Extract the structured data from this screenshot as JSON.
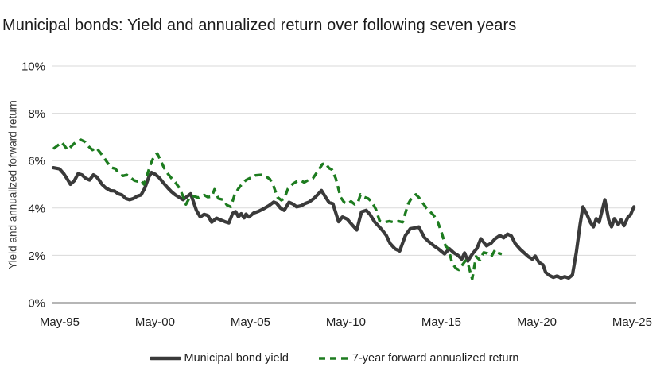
{
  "title": "Municipal bonds: Yield and annualized return over following seven years",
  "chart_data": {
    "type": "line",
    "title": "Municipal bonds: Yield and annualized return over following seven years",
    "xlabel": "",
    "ylabel": "Yield and annualized forward return",
    "ylim": [
      0,
      10
    ],
    "grid": "horizontal-only",
    "legend_position": "bottom-center",
    "y_ticks": [
      {
        "label": "0%",
        "value": 0
      },
      {
        "label": "2%",
        "value": 2
      },
      {
        "label": "4%",
        "value": 4
      },
      {
        "label": "6%",
        "value": 6
      },
      {
        "label": "8%",
        "value": 8
      },
      {
        "label": "10%",
        "value": 10
      }
    ],
    "x_ticks": [
      {
        "label": "May-95",
        "year": 1995.33
      },
      {
        "label": "May-00",
        "year": 2000.33
      },
      {
        "label": "May-05",
        "year": 2005.33
      },
      {
        "label": "May-10",
        "year": 2010.33
      },
      {
        "label": "May-15",
        "year": 2015.33
      },
      {
        "label": "May-20",
        "year": 2020.33
      },
      {
        "label": "May-25",
        "year": 2025.33
      }
    ],
    "series": [
      {
        "name": "Municipal bond yield",
        "style": "solid",
        "color": "#3a3a3a",
        "points": [
          [
            1995.0,
            5.7
          ],
          [
            1995.33,
            5.65
          ],
          [
            1995.55,
            5.45
          ],
          [
            1995.75,
            5.2
          ],
          [
            1995.9,
            5.0
          ],
          [
            1996.1,
            5.15
          ],
          [
            1996.3,
            5.45
          ],
          [
            1996.5,
            5.4
          ],
          [
            1996.7,
            5.25
          ],
          [
            1996.9,
            5.18
          ],
          [
            1997.1,
            5.4
          ],
          [
            1997.25,
            5.33
          ],
          [
            1997.4,
            5.18
          ],
          [
            1997.55,
            5.0
          ],
          [
            1997.75,
            4.85
          ],
          [
            1998.0,
            4.73
          ],
          [
            1998.2,
            4.72
          ],
          [
            1998.4,
            4.6
          ],
          [
            1998.6,
            4.55
          ],
          [
            1998.8,
            4.4
          ],
          [
            1999.0,
            4.35
          ],
          [
            1999.2,
            4.4
          ],
          [
            1999.4,
            4.5
          ],
          [
            1999.6,
            4.55
          ],
          [
            1999.8,
            4.85
          ],
          [
            2000.0,
            5.3
          ],
          [
            2000.15,
            5.5
          ],
          [
            2000.35,
            5.42
          ],
          [
            2000.55,
            5.28
          ],
          [
            2000.75,
            5.08
          ],
          [
            2001.0,
            4.85
          ],
          [
            2001.2,
            4.68
          ],
          [
            2001.4,
            4.55
          ],
          [
            2001.6,
            4.45
          ],
          [
            2001.8,
            4.35
          ],
          [
            2002.0,
            4.48
          ],
          [
            2002.2,
            4.6
          ],
          [
            2002.5,
            3.9
          ],
          [
            2002.7,
            3.62
          ],
          [
            2002.9,
            3.73
          ],
          [
            2003.1,
            3.68
          ],
          [
            2003.3,
            3.4
          ],
          [
            2003.55,
            3.57
          ],
          [
            2003.75,
            3.5
          ],
          [
            2004.0,
            3.42
          ],
          [
            2004.2,
            3.37
          ],
          [
            2004.4,
            3.78
          ],
          [
            2004.55,
            3.85
          ],
          [
            2004.7,
            3.63
          ],
          [
            2004.85,
            3.76
          ],
          [
            2005.0,
            3.58
          ],
          [
            2005.1,
            3.74
          ],
          [
            2005.25,
            3.62
          ],
          [
            2005.5,
            3.79
          ],
          [
            2005.75,
            3.86
          ],
          [
            2006.0,
            3.96
          ],
          [
            2006.3,
            4.1
          ],
          [
            2006.55,
            4.25
          ],
          [
            2006.7,
            4.2
          ],
          [
            2006.9,
            4.0
          ],
          [
            2007.1,
            3.9
          ],
          [
            2007.35,
            4.24
          ],
          [
            2007.55,
            4.17
          ],
          [
            2007.75,
            4.05
          ],
          [
            2008.0,
            4.1
          ],
          [
            2008.2,
            4.19
          ],
          [
            2008.4,
            4.25
          ],
          [
            2008.65,
            4.4
          ],
          [
            2008.9,
            4.6
          ],
          [
            2009.05,
            4.74
          ],
          [
            2009.25,
            4.48
          ],
          [
            2009.45,
            4.23
          ],
          [
            2009.65,
            4.18
          ],
          [
            2009.95,
            3.42
          ],
          [
            2010.15,
            3.62
          ],
          [
            2010.4,
            3.53
          ],
          [
            2010.65,
            3.3
          ],
          [
            2010.9,
            3.07
          ],
          [
            2011.15,
            3.84
          ],
          [
            2011.4,
            3.9
          ],
          [
            2011.6,
            3.72
          ],
          [
            2011.85,
            3.4
          ],
          [
            2012.05,
            3.23
          ],
          [
            2012.25,
            3.05
          ],
          [
            2012.45,
            2.84
          ],
          [
            2012.65,
            2.5
          ],
          [
            2012.9,
            2.28
          ],
          [
            2013.15,
            2.18
          ],
          [
            2013.45,
            2.84
          ],
          [
            2013.7,
            3.12
          ],
          [
            2013.9,
            3.15
          ],
          [
            2014.15,
            3.2
          ],
          [
            2014.45,
            2.75
          ],
          [
            2014.7,
            2.56
          ],
          [
            2014.95,
            2.4
          ],
          [
            2015.2,
            2.26
          ],
          [
            2015.5,
            2.06
          ],
          [
            2015.75,
            2.28
          ],
          [
            2016.0,
            2.1
          ],
          [
            2016.2,
            2.0
          ],
          [
            2016.4,
            1.84
          ],
          [
            2016.55,
            2.1
          ],
          [
            2016.72,
            1.76
          ],
          [
            2016.95,
            2.05
          ],
          [
            2017.2,
            2.3
          ],
          [
            2017.4,
            2.7
          ],
          [
            2017.7,
            2.4
          ],
          [
            2017.95,
            2.52
          ],
          [
            2018.15,
            2.7
          ],
          [
            2018.4,
            2.84
          ],
          [
            2018.6,
            2.74
          ],
          [
            2018.8,
            2.9
          ],
          [
            2019.0,
            2.82
          ],
          [
            2019.2,
            2.5
          ],
          [
            2019.45,
            2.27
          ],
          [
            2019.65,
            2.12
          ],
          [
            2019.9,
            1.94
          ],
          [
            2020.1,
            1.84
          ],
          [
            2020.25,
            1.97
          ],
          [
            2020.45,
            1.7
          ],
          [
            2020.66,
            1.6
          ],
          [
            2020.8,
            1.28
          ],
          [
            2021.0,
            1.15
          ],
          [
            2021.2,
            1.07
          ],
          [
            2021.4,
            1.13
          ],
          [
            2021.6,
            1.04
          ],
          [
            2021.8,
            1.1
          ],
          [
            2022.0,
            1.04
          ],
          [
            2022.2,
            1.17
          ],
          [
            2022.4,
            2.1
          ],
          [
            2022.6,
            3.3
          ],
          [
            2022.75,
            4.05
          ],
          [
            2022.95,
            3.75
          ],
          [
            2023.15,
            3.38
          ],
          [
            2023.3,
            3.2
          ],
          [
            2023.45,
            3.55
          ],
          [
            2023.6,
            3.4
          ],
          [
            2023.9,
            4.35
          ],
          [
            2024.1,
            3.5
          ],
          [
            2024.25,
            3.2
          ],
          [
            2024.4,
            3.55
          ],
          [
            2024.6,
            3.3
          ],
          [
            2024.75,
            3.5
          ],
          [
            2024.9,
            3.25
          ],
          [
            2025.1,
            3.6
          ],
          [
            2025.25,
            3.72
          ],
          [
            2025.42,
            4.05
          ]
        ]
      },
      {
        "name": "7-year forward annualized return",
        "style": "dashed",
        "color": "#1d7c1f",
        "points": [
          [
            1995.0,
            6.5
          ],
          [
            1995.2,
            6.62
          ],
          [
            1995.45,
            6.78
          ],
          [
            1995.75,
            6.45
          ],
          [
            1996.0,
            6.65
          ],
          [
            1996.2,
            6.8
          ],
          [
            1996.45,
            6.88
          ],
          [
            1996.65,
            6.8
          ],
          [
            1996.85,
            6.6
          ],
          [
            1997.05,
            6.45
          ],
          [
            1997.25,
            6.55
          ],
          [
            1997.45,
            6.35
          ],
          [
            1997.65,
            6.13
          ],
          [
            1997.85,
            5.9
          ],
          [
            1998.05,
            5.7
          ],
          [
            1998.25,
            5.66
          ],
          [
            1998.45,
            5.45
          ],
          [
            1998.65,
            5.36
          ],
          [
            1998.85,
            5.4
          ],
          [
            1999.05,
            5.28
          ],
          [
            1999.25,
            5.16
          ],
          [
            1999.45,
            5.12
          ],
          [
            1999.6,
            5.16
          ],
          [
            1999.75,
            5.0
          ],
          [
            1999.9,
            5.35
          ],
          [
            2000.1,
            5.85
          ],
          [
            2000.3,
            6.22
          ],
          [
            2000.45,
            6.3
          ],
          [
            2000.6,
            6.05
          ],
          [
            2000.8,
            5.7
          ],
          [
            2001.0,
            5.45
          ],
          [
            2001.2,
            5.25
          ],
          [
            2001.4,
            5.08
          ],
          [
            2001.6,
            4.85
          ],
          [
            2001.8,
            4.5
          ],
          [
            2001.95,
            4.15
          ],
          [
            2002.15,
            4.45
          ],
          [
            2002.35,
            4.5
          ],
          [
            2002.6,
            4.44
          ],
          [
            2002.9,
            4.55
          ],
          [
            2003.1,
            4.46
          ],
          [
            2003.3,
            4.48
          ],
          [
            2003.45,
            4.79
          ],
          [
            2003.65,
            4.4
          ],
          [
            2003.9,
            4.35
          ],
          [
            2004.1,
            4.12
          ],
          [
            2004.3,
            4.05
          ],
          [
            2004.5,
            4.55
          ],
          [
            2004.7,
            4.82
          ],
          [
            2004.9,
            5.02
          ],
          [
            2005.1,
            5.18
          ],
          [
            2005.35,
            5.28
          ],
          [
            2005.6,
            5.38
          ],
          [
            2005.9,
            5.4
          ],
          [
            2006.15,
            5.33
          ],
          [
            2006.35,
            5.22
          ],
          [
            2006.55,
            4.9
          ],
          [
            2006.75,
            4.45
          ],
          [
            2006.95,
            4.33
          ],
          [
            2007.1,
            4.4
          ],
          [
            2007.3,
            4.82
          ],
          [
            2007.55,
            5.02
          ],
          [
            2007.75,
            5.12
          ],
          [
            2007.95,
            5.17
          ],
          [
            2008.15,
            5.08
          ],
          [
            2008.4,
            5.2
          ],
          [
            2008.6,
            5.25
          ],
          [
            2008.9,
            5.6
          ],
          [
            2009.1,
            5.85
          ],
          [
            2009.25,
            5.9
          ],
          [
            2009.45,
            5.68
          ],
          [
            2009.6,
            5.62
          ],
          [
            2009.8,
            5.25
          ],
          [
            2010.05,
            4.46
          ],
          [
            2010.25,
            4.23
          ],
          [
            2010.45,
            4.18
          ],
          [
            2010.6,
            4.28
          ],
          [
            2010.8,
            4.15
          ],
          [
            2010.95,
            4.2
          ],
          [
            2011.1,
            4.57
          ],
          [
            2011.3,
            4.46
          ],
          [
            2011.5,
            4.4
          ],
          [
            2011.7,
            4.25
          ],
          [
            2011.9,
            3.95
          ],
          [
            2012.1,
            3.45
          ],
          [
            2012.35,
            3.4
          ],
          [
            2012.6,
            3.44
          ],
          [
            2012.85,
            3.4
          ],
          [
            2013.1,
            3.44
          ],
          [
            2013.3,
            3.4
          ],
          [
            2013.6,
            4.18
          ],
          [
            2013.8,
            4.46
          ],
          [
            2014.0,
            4.57
          ],
          [
            2014.15,
            4.45
          ],
          [
            2014.35,
            4.22
          ],
          [
            2014.55,
            4.0
          ],
          [
            2014.75,
            3.84
          ],
          [
            2014.95,
            3.67
          ],
          [
            2015.15,
            3.4
          ],
          [
            2015.35,
            2.95
          ],
          [
            2015.55,
            2.4
          ],
          [
            2015.7,
            2.28
          ],
          [
            2015.9,
            1.67
          ],
          [
            2016.1,
            1.45
          ],
          [
            2016.25,
            1.39
          ],
          [
            2016.4,
            1.56
          ],
          [
            2016.6,
            1.78
          ],
          [
            2016.75,
            1.58
          ],
          [
            2016.95,
            1.0
          ],
          [
            2017.15,
            1.95
          ],
          [
            2017.35,
            1.8
          ],
          [
            2017.55,
            2.12
          ],
          [
            2017.75,
            2.08
          ],
          [
            2017.95,
            1.95
          ],
          [
            2018.15,
            2.23
          ],
          [
            2018.3,
            2.1
          ],
          [
            2018.5,
            2.05
          ]
        ]
      }
    ]
  },
  "colors": {
    "background": "#ffffff",
    "title_text": "#1b1b1b",
    "tick_text": "#1f1f1f",
    "axis_label_text": "#3c3c3c",
    "gridline": "#dadada",
    "baseline_axis": "#6e6e6e",
    "yield_line": "#3a3a3a",
    "forward_return_line": "#1d7c1f"
  }
}
